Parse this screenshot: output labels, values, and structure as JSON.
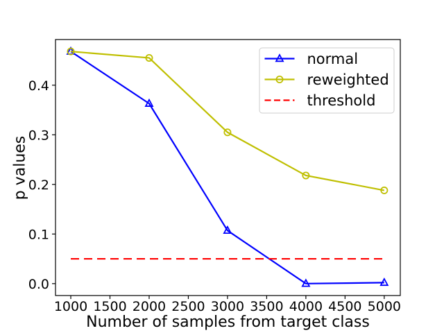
{
  "figure": {
    "background": "#ffffff"
  },
  "chart_data": {
    "type": "line",
    "title": "",
    "xlabel": "Number of samples from target class",
    "ylabel": "p values",
    "x": [
      1000,
      2000,
      3000,
      4000,
      5000
    ],
    "series": [
      {
        "name": "normal",
        "color": "#0000ff",
        "marker": "triangle",
        "values": [
          0.468,
          0.363,
          0.107,
          0.0,
          0.002
        ]
      },
      {
        "name": "reweighted",
        "color": "#bfbf00",
        "marker": "circle",
        "values": [
          0.468,
          0.455,
          0.305,
          0.218,
          0.188
        ]
      }
    ],
    "threshold": {
      "name": "threshold",
      "color": "#ff0000",
      "style": "dashed",
      "value": 0.05,
      "x_start": 1000,
      "x_end": 5000
    },
    "x_ticks": [
      1000,
      1500,
      2000,
      2500,
      3000,
      3500,
      4000,
      4500,
      5000
    ],
    "y_ticks": [
      0.0,
      0.1,
      0.2,
      0.3,
      0.4
    ],
    "xlim": [
      805,
      5205
    ],
    "ylim": [
      -0.024,
      0.492
    ],
    "grid": false,
    "legend": {
      "position": "upper right",
      "entries": [
        "normal",
        "reweighted",
        "threshold"
      ]
    },
    "colors": {
      "axes": "#000000",
      "legend_border": "#cccccc",
      "legend_bg": "#ffffff"
    }
  }
}
